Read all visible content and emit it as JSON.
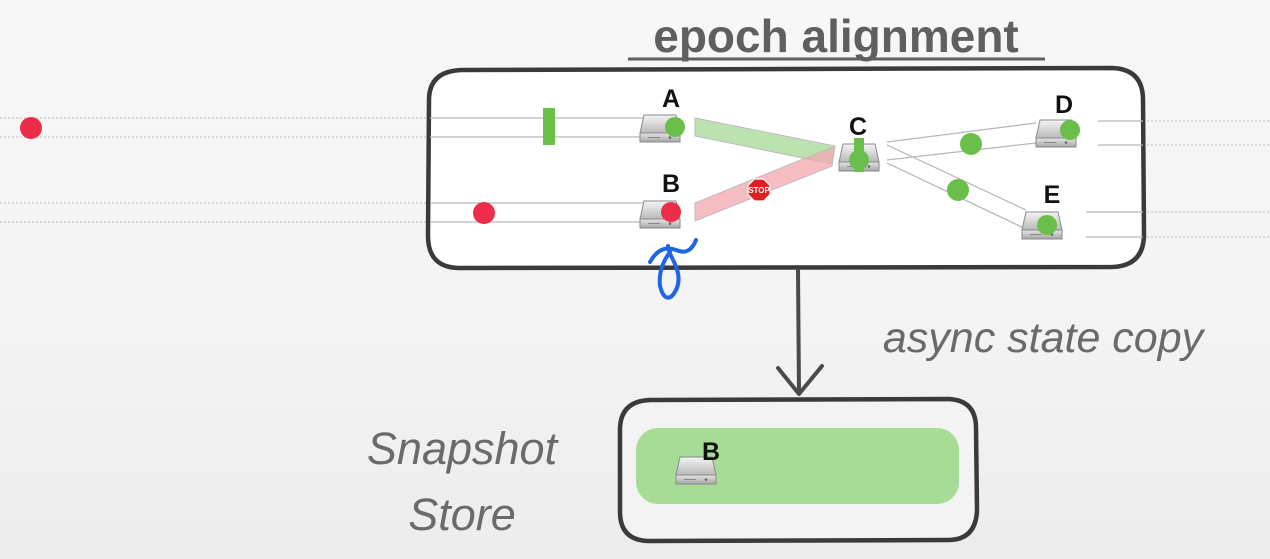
{
  "diagram": {
    "title": "epoch alignment",
    "nodes": {
      "a": "A",
      "b": "B",
      "c": "C",
      "d": "D",
      "e": "E"
    },
    "stop_sign": "STOP",
    "edge_label": "async state copy",
    "store": {
      "line1": "Snapshot",
      "line2": "Store",
      "snapshot_node": "B"
    },
    "colors": {
      "record": "#ee2d4b",
      "barrier": "#6abf4b",
      "aligned_channel": "#9fd690",
      "blocked_channel": "#f2a7ad",
      "annotation": "#1e66e6",
      "snapshot_fill": "#a6dc96"
    }
  }
}
